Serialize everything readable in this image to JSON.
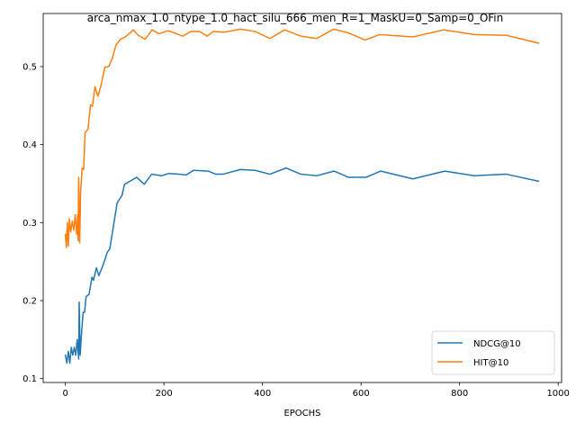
{
  "chart_data": {
    "type": "line",
    "title": "arca_nmax_1.0_ntype_1.0_hact_silu_666_men_R=1_MaskU=0_Samp=0_OFin",
    "xlabel": "EPOCHS",
    "ylabel": "",
    "xlim": [
      -45,
      1007
    ],
    "ylim": [
      0.095,
      0.568
    ],
    "xticks": [
      0,
      200,
      400,
      600,
      800,
      1000
    ],
    "yticks": [
      0.1,
      0.2,
      0.3,
      0.4,
      0.5
    ],
    "grid": false,
    "legend_position": "lower right",
    "series": [
      {
        "name": "NDCG@10",
        "color": "#1f77b4",
        "points": [
          [
            0,
            0.13
          ],
          [
            3,
            0.12
          ],
          [
            6,
            0.135
          ],
          [
            9,
            0.12
          ],
          [
            12,
            0.14
          ],
          [
            15,
            0.13
          ],
          [
            18,
            0.14
          ],
          [
            21,
            0.13
          ],
          [
            24,
            0.15
          ],
          [
            27,
            0.125
          ],
          [
            28,
            0.198
          ],
          [
            30,
            0.13
          ],
          [
            33,
            0.16
          ],
          [
            36,
            0.185
          ],
          [
            39,
            0.185
          ],
          [
            42,
            0.205
          ],
          [
            48,
            0.208
          ],
          [
            54,
            0.23
          ],
          [
            57,
            0.226
          ],
          [
            63,
            0.242
          ],
          [
            68,
            0.232
          ],
          [
            78,
            0.248
          ],
          [
            85,
            0.262
          ],
          [
            90,
            0.266
          ],
          [
            105,
            0.325
          ],
          [
            115,
            0.335
          ],
          [
            120,
            0.349
          ],
          [
            145,
            0.358
          ],
          [
            160,
            0.349
          ],
          [
            175,
            0.362
          ],
          [
            195,
            0.36
          ],
          [
            210,
            0.363
          ],
          [
            230,
            0.362
          ],
          [
            245,
            0.361
          ],
          [
            260,
            0.367
          ],
          [
            290,
            0.366
          ],
          [
            305,
            0.362
          ],
          [
            320,
            0.362
          ],
          [
            355,
            0.368
          ],
          [
            385,
            0.367
          ],
          [
            415,
            0.362
          ],
          [
            448,
            0.37
          ],
          [
            478,
            0.362
          ],
          [
            510,
            0.36
          ],
          [
            545,
            0.366
          ],
          [
            575,
            0.358
          ],
          [
            610,
            0.358
          ],
          [
            640,
            0.366
          ],
          [
            705,
            0.356
          ],
          [
            770,
            0.366
          ],
          [
            830,
            0.36
          ],
          [
            895,
            0.362
          ],
          [
            960,
            0.353
          ]
        ]
      },
      {
        "name": "HIT@10",
        "color": "#ff7f0e",
        "points": [
          [
            0,
            0.285
          ],
          [
            2,
            0.268
          ],
          [
            4,
            0.3
          ],
          [
            6,
            0.27
          ],
          [
            8,
            0.305
          ],
          [
            11,
            0.288
          ],
          [
            14,
            0.302
          ],
          [
            17,
            0.29
          ],
          [
            20,
            0.31
          ],
          [
            23,
            0.285
          ],
          [
            25,
            0.31
          ],
          [
            26,
            0.277
          ],
          [
            27,
            0.358
          ],
          [
            29,
            0.274
          ],
          [
            31,
            0.34
          ],
          [
            34,
            0.37
          ],
          [
            37,
            0.368
          ],
          [
            40,
            0.415
          ],
          [
            46,
            0.42
          ],
          [
            51,
            0.451
          ],
          [
            55,
            0.449
          ],
          [
            60,
            0.474
          ],
          [
            66,
            0.462
          ],
          [
            72,
            0.475
          ],
          [
            80,
            0.499
          ],
          [
            88,
            0.5
          ],
          [
            95,
            0.51
          ],
          [
            103,
            0.528
          ],
          [
            112,
            0.535
          ],
          [
            122,
            0.538
          ],
          [
            138,
            0.547
          ],
          [
            148,
            0.54
          ],
          [
            162,
            0.535
          ],
          [
            176,
            0.547
          ],
          [
            190,
            0.542
          ],
          [
            208,
            0.546
          ],
          [
            222,
            0.543
          ],
          [
            238,
            0.539
          ],
          [
            255,
            0.545
          ],
          [
            272,
            0.545
          ],
          [
            288,
            0.539
          ],
          [
            300,
            0.545
          ],
          [
            322,
            0.544
          ],
          [
            355,
            0.548
          ],
          [
            385,
            0.545
          ],
          [
            415,
            0.536
          ],
          [
            445,
            0.547
          ],
          [
            478,
            0.539
          ],
          [
            510,
            0.536
          ],
          [
            545,
            0.548
          ],
          [
            575,
            0.543
          ],
          [
            608,
            0.534
          ],
          [
            638,
            0.541
          ],
          [
            705,
            0.538
          ],
          [
            768,
            0.547
          ],
          [
            830,
            0.541
          ],
          [
            895,
            0.54
          ],
          [
            960,
            0.53
          ]
        ]
      }
    ]
  }
}
